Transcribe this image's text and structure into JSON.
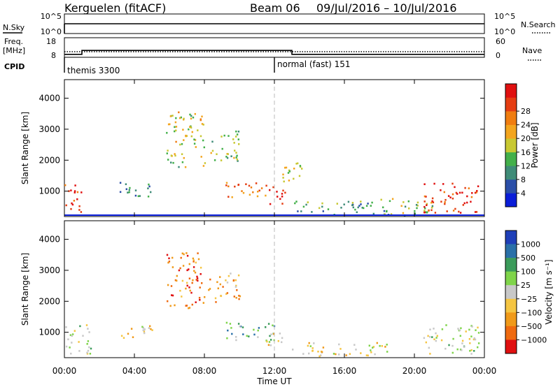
{
  "header": {
    "station": "Kerguelen (fitACF)",
    "beam": "Beam 06",
    "dates": "09/Jul/2016 – 10/Jul/2016"
  },
  "status_panels": {
    "nsky_label": "N.Sky",
    "nsearch_label": "N.Search",
    "freq_label": "Freq.",
    "freq_unit": "[MHz]",
    "nave_label": "Nave",
    "cpid_label": "CPID",
    "left_ticks_top": [
      "10^5",
      "10^0"
    ],
    "right_ticks_top": [
      "10^5",
      "10^0"
    ],
    "left_ticks_freq": [
      "18",
      "8"
    ],
    "right_ticks_nave": [
      "60",
      "0"
    ],
    "cpid_modes": [
      {
        "label": "themis 3300",
        "start_hour": 0
      },
      {
        "label": "normal (fast) 151",
        "start_hour": 12
      }
    ],
    "freq_steps": [
      {
        "hour": 0,
        "mhz": 9.5
      },
      {
        "hour": 1,
        "mhz": 11.5
      },
      {
        "hour": 13,
        "mhz": 9.5
      },
      {
        "hour": 24,
        "mhz": 9.5
      }
    ]
  },
  "chart_data": [
    {
      "type": "heatmap",
      "title": "",
      "xlabel": "",
      "ylabel": "Slant Range [km]",
      "xlim": [
        0,
        24
      ],
      "ylim": [
        180,
        4600
      ],
      "x_ticks": [
        0,
        4,
        8,
        12,
        16,
        20,
        24
      ],
      "y_ticks": [
        1000,
        2000,
        3000,
        4000
      ],
      "colorbar": {
        "label": "Power [dB]",
        "tick_labels": [
          "4",
          "8",
          "12",
          "16",
          "20",
          "24",
          "28"
        ],
        "colors": [
          "#0a1dd8",
          "#2b4fa8",
          "#3f8c78",
          "#43b04a",
          "#c8c832",
          "#f3a51e",
          "#f07d10",
          "#e53d12",
          "#e01010"
        ]
      },
      "regions": [
        {
          "hours": [
            0.0,
            1.0
          ],
          "range_km": [
            300,
            1300
          ],
          "level": 0.85
        },
        {
          "hours": [
            3.0,
            5.0
          ],
          "range_km": [
            800,
            1300
          ],
          "level": 0.25
        },
        {
          "hours": [
            5.8,
            8.0
          ],
          "range_km": [
            1800,
            3600
          ],
          "level": 0.5
        },
        {
          "hours": [
            8.2,
            10.0
          ],
          "range_km": [
            2000,
            3000
          ],
          "level": 0.45
        },
        {
          "hours": [
            9.2,
            12.0
          ],
          "range_km": [
            800,
            1300
          ],
          "level": 0.75
        },
        {
          "hours": [
            11.5,
            12.6
          ],
          "range_km": [
            600,
            1150
          ],
          "level": 0.95
        },
        {
          "hours": [
            12.3,
            13.6
          ],
          "range_km": [
            1300,
            2100
          ],
          "level": 0.55
        },
        {
          "hours": [
            13.0,
            18.5
          ],
          "range_km": [
            250,
            700
          ],
          "level": 0.35
        },
        {
          "hours": [
            18.0,
            21.0
          ],
          "range_km": [
            250,
            800
          ],
          "level": 0.45
        },
        {
          "hours": [
            20.5,
            23.7
          ],
          "range_km": [
            300,
            1300
          ],
          "level": 0.9
        }
      ]
    },
    {
      "type": "heatmap",
      "title": "",
      "xlabel": "Time UT",
      "ylabel": "Slant Range [km]",
      "xlim": [
        0,
        24
      ],
      "ylim": [
        180,
        4600
      ],
      "x_ticks": [
        0,
        4,
        8,
        12,
        16,
        20,
        24
      ],
      "x_tick_labels": [
        "00:00",
        "04:00",
        "08:00",
        "12:00",
        "16:00",
        "20:00",
        "00:00"
      ],
      "y_ticks": [
        1000,
        2000,
        3000,
        4000
      ],
      "colorbar": {
        "label": "Velocity [m s⁻¹]",
        "tick_labels": [
          "1000",
          "500",
          "100",
          "25",
          "−25",
          "−100",
          "−500",
          "−1000"
        ],
        "colors": [
          "#1f3fb8",
          "#2a70a8",
          "#3b9b5a",
          "#7fd44a",
          "#c8c8c8",
          "#f5c542",
          "#f09a1a",
          "#ef6a10",
          "#e01010"
        ]
      },
      "regions": [
        {
          "hours": [
            0.0,
            1.5
          ],
          "range_km": [
            300,
            1300
          ],
          "level": 0.5
        },
        {
          "hours": [
            3.2,
            5.0
          ],
          "range_km": [
            800,
            1300
          ],
          "level": 0.6
        },
        {
          "hours": [
            5.8,
            8.0
          ],
          "range_km": [
            1800,
            3600
          ],
          "level": 0.8
        },
        {
          "hours": [
            8.2,
            10.0
          ],
          "range_km": [
            2000,
            3000
          ],
          "level": 0.7
        },
        {
          "hours": [
            9.2,
            12.0
          ],
          "range_km": [
            700,
            1350
          ],
          "level": 0.3
        },
        {
          "hours": [
            11.5,
            12.6
          ],
          "range_km": [
            600,
            1150
          ],
          "level": 0.65
        },
        {
          "hours": [
            13.0,
            18.5
          ],
          "range_km": [
            250,
            700
          ],
          "level": 0.55
        },
        {
          "hours": [
            20.5,
            23.7
          ],
          "range_km": [
            300,
            1300
          ],
          "level": 0.45
        }
      ]
    }
  ]
}
